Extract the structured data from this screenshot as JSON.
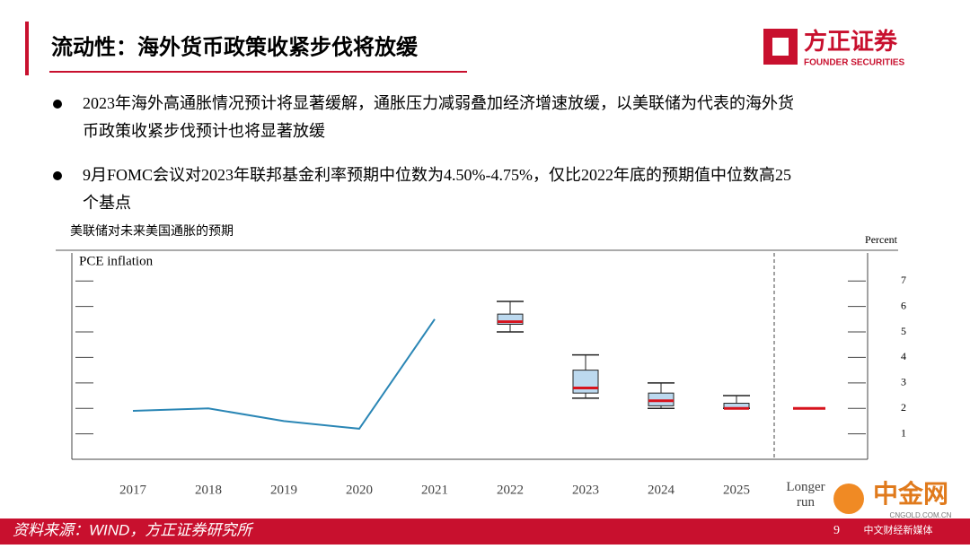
{
  "header": {
    "title": "流动性：海外货币政策收紧步伐将放缓",
    "logo": "方正证券",
    "logo_sub": "FOUNDER SECURITIES"
  },
  "bullets": [
    [
      "2023年海外高通胀情况预计将显著缓解，通胀压力减弱叠加经济增速放缓，以美联储为代表的海外货",
      "币政策收紧步伐预计也将显著放缓"
    ],
    [
      "9月FOMC会议对2023年联邦基金利率预期中位数为4.50%-4.75%，仅比2022年底的预期值中位数高25",
      "个基点"
    ]
  ],
  "chart_data": {
    "type": "box",
    "title": "美联储对未来美国通胀的预期",
    "y_unit": "Percent",
    "ylabel": "PCE inflation",
    "categories": [
      "2017",
      "2018",
      "2019",
      "2020",
      "2021",
      "2022",
      "2023",
      "2024",
      "2025",
      "Longer run"
    ],
    "line": {
      "color": "#2a86b5",
      "values": [
        1.9,
        2.0,
        1.5,
        1.2,
        5.5,
        null,
        null,
        null,
        null,
        null
      ]
    },
    "boxes": [
      null,
      null,
      null,
      null,
      null,
      {
        "whisker_low": 5.0,
        "q1": 5.3,
        "median": 5.4,
        "q3": 5.7,
        "whisker_high": 6.2
      },
      {
        "whisker_low": 2.4,
        "q1": 2.6,
        "median": 2.8,
        "q3": 3.5,
        "whisker_high": 4.1
      },
      {
        "whisker_low": 2.0,
        "q1": 2.1,
        "median": 2.3,
        "q3": 2.6,
        "whisker_high": 3.0
      },
      {
        "whisker_low": 2.0,
        "q1": 2.0,
        "median": 2.0,
        "q3": 2.2,
        "whisker_high": 2.5
      },
      {
        "median": 2.0
      }
    ],
    "box_color": "#bcd9ef",
    "median_color": "#d7131d",
    "ylim": [
      0,
      8.1
    ],
    "yticks": [
      1,
      2,
      3,
      4,
      5,
      6,
      7
    ]
  },
  "footer": {
    "source": "资料来源：WIND，方正证券研究所",
    "page": "9"
  },
  "watermark": {
    "name": "中金网",
    "domain": "CNGOLD.COM.CN",
    "tagline": "中文财经新媒体"
  }
}
